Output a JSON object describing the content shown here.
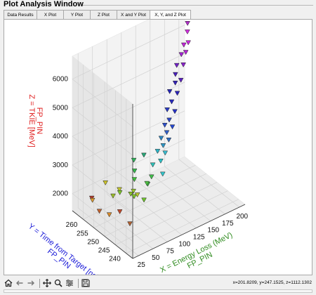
{
  "window": {
    "title": "Plot Analysis Window"
  },
  "tabs": [
    {
      "label": "Data Results",
      "active": false
    },
    {
      "label": "X Plot",
      "active": false
    },
    {
      "label": "Y Plot",
      "active": false
    },
    {
      "label": "Z Plot",
      "active": false
    },
    {
      "label": "X and Y Plot",
      "active": false
    },
    {
      "label": "X, Y, and Z Plot",
      "active": true
    }
  ],
  "toolbar": {
    "buttons": [
      {
        "icon": "home-icon"
      },
      {
        "icon": "back-arrow-icon"
      },
      {
        "icon": "forward-arrow-icon"
      },
      {
        "icon": "pan-icon"
      },
      {
        "icon": "zoom-icon"
      },
      {
        "icon": "configure-icon"
      },
      {
        "icon": "save-icon"
      }
    ],
    "coords": "x=201.8209, y=247.1525, z=1112.1302"
  },
  "chart_data": {
    "type": "scatter3d",
    "xlabel": "X = Energy Loss (MeV)",
    "xlabel2": "FP_PIN",
    "ylabel": "Y = Time from Target [ns]",
    "ylabel2": "FP_PIN",
    "zlabel": "Z = TKIE [MeV]",
    "zlabel2": "FP_PIN",
    "axis_colors": {
      "x": "#2e8b1e",
      "y": "#1a1ad8",
      "z": "#e02020"
    },
    "xticks": [
      25,
      50,
      75,
      100,
      125,
      150,
      175,
      200
    ],
    "yticks": [
      240,
      245,
      250,
      255,
      260
    ],
    "zticks": [
      2000,
      3000,
      4000,
      5000,
      6000
    ],
    "xlim": [
      15,
      210
    ],
    "ylim": [
      237,
      265
    ],
    "zlim": [
      1400,
      6800
    ],
    "marker": "triangle-down",
    "grid": true,
    "points": [
      {
        "x": 30,
        "y": 260,
        "z": 2000,
        "c": "#b03a2e"
      },
      {
        "x": 32,
        "y": 257,
        "z": 1700,
        "c": "#c0622f"
      },
      {
        "x": 38,
        "y": 254,
        "z": 1700,
        "c": "#d68a2b"
      },
      {
        "x": 20,
        "y": 257,
        "z": 2200,
        "c": "#d89a34"
      },
      {
        "x": 52,
        "y": 256,
        "z": 2100,
        "c": "#9bbd2a"
      },
      {
        "x": 40,
        "y": 245,
        "z": 1900,
        "c": "#b06030"
      },
      {
        "x": 30,
        "y": 247,
        "z": 2300,
        "c": "#c04a2c"
      },
      {
        "x": 48,
        "y": 252,
        "z": 2600,
        "c": "#bfc32c"
      },
      {
        "x": 50,
        "y": 259,
        "z": 2400,
        "c": "#cbc22a"
      },
      {
        "x": 60,
        "y": 255,
        "z": 2200,
        "c": "#7ec62b"
      },
      {
        "x": 65,
        "y": 250,
        "z": 2500,
        "c": "#9ac82e"
      },
      {
        "x": 64,
        "y": 251,
        "z": 2350,
        "c": "#8fc52c"
      },
      {
        "x": 66,
        "y": 250,
        "z": 2300,
        "c": "#7ec62b"
      },
      {
        "x": 68,
        "y": 249,
        "z": 2400,
        "c": "#b9c92e"
      },
      {
        "x": 72,
        "y": 247,
        "z": 2300,
        "c": "#6ec42c"
      },
      {
        "x": 74,
        "y": 252,
        "z": 2700,
        "c": "#3fbf3a"
      },
      {
        "x": 78,
        "y": 253,
        "z": 2900,
        "c": "#35b94a"
      },
      {
        "x": 86,
        "y": 249,
        "z": 2600,
        "c": "#3cbd45"
      },
      {
        "x": 92,
        "y": 251,
        "z": 2450,
        "c": "#4dc142"
      },
      {
        "x": 88,
        "y": 256,
        "z": 3000,
        "c": "#2eb35a"
      },
      {
        "x": 98,
        "y": 254,
        "z": 3200,
        "c": "#28a878"
      },
      {
        "x": 100,
        "y": 251,
        "z": 2600,
        "c": "#3fbd4a"
      },
      {
        "x": 106,
        "y": 252,
        "z": 2900,
        "c": "#2fc0b8"
      },
      {
        "x": 112,
        "y": 249,
        "z": 2700,
        "c": "#32c6cc"
      },
      {
        "x": 116,
        "y": 251,
        "z": 3000,
        "c": "#2cc2c8"
      },
      {
        "x": 118,
        "y": 253,
        "z": 3200,
        "c": "#2ab4c6"
      },
      {
        "x": 120,
        "y": 250,
        "z": 3300,
        "c": "#38bcd0"
      },
      {
        "x": 124,
        "y": 252,
        "z": 3400,
        "c": "#2e98c8"
      },
      {
        "x": 128,
        "y": 254,
        "z": 3500,
        "c": "#2a84c0"
      },
      {
        "x": 130,
        "y": 251,
        "z": 3600,
        "c": "#2f6fc4"
      },
      {
        "x": 134,
        "y": 253,
        "z": 3700,
        "c": "#2f5ec8"
      },
      {
        "x": 138,
        "y": 255,
        "z": 3800,
        "c": "#2c4ecc"
      },
      {
        "x": 140,
        "y": 252,
        "z": 3900,
        "c": "#2447d0"
      },
      {
        "x": 142,
        "y": 254,
        "z": 4000,
        "c": "#2d46c7"
      },
      {
        "x": 146,
        "y": 256,
        "z": 4200,
        "c": "#2a3bc8"
      },
      {
        "x": 148,
        "y": 253,
        "z": 4300,
        "c": "#2631c4"
      },
      {
        "x": 150,
        "y": 255,
        "z": 4500,
        "c": "#2628c0"
      },
      {
        "x": 154,
        "y": 257,
        "z": 4700,
        "c": "#2525b8"
      },
      {
        "x": 156,
        "y": 254,
        "z": 4800,
        "c": "#2a22bc"
      },
      {
        "x": 160,
        "y": 256,
        "z": 5000,
        "c": "#3322b8"
      },
      {
        "x": 164,
        "y": 257,
        "z": 5200,
        "c": "#4a20bc"
      },
      {
        "x": 166,
        "y": 255,
        "z": 5100,
        "c": "#5c20c2"
      },
      {
        "x": 170,
        "y": 258,
        "z": 5400,
        "c": "#7120c8"
      },
      {
        "x": 174,
        "y": 256,
        "z": 5500,
        "c": "#8a22cc"
      },
      {
        "x": 178,
        "y": 258,
        "z": 5700,
        "c": "#a022d2"
      },
      {
        "x": 182,
        "y": 257,
        "z": 5800,
        "c": "#b424d6"
      },
      {
        "x": 186,
        "y": 259,
        "z": 5900,
        "c": "#c226d8"
      },
      {
        "x": 190,
        "y": 258,
        "z": 6000,
        "c": "#c928dc"
      },
      {
        "x": 196,
        "y": 260,
        "z": 6200,
        "c": "#d22ee0"
      },
      {
        "x": 200,
        "y": 261,
        "z": 6400,
        "c": "#b02cc8"
      }
    ]
  }
}
